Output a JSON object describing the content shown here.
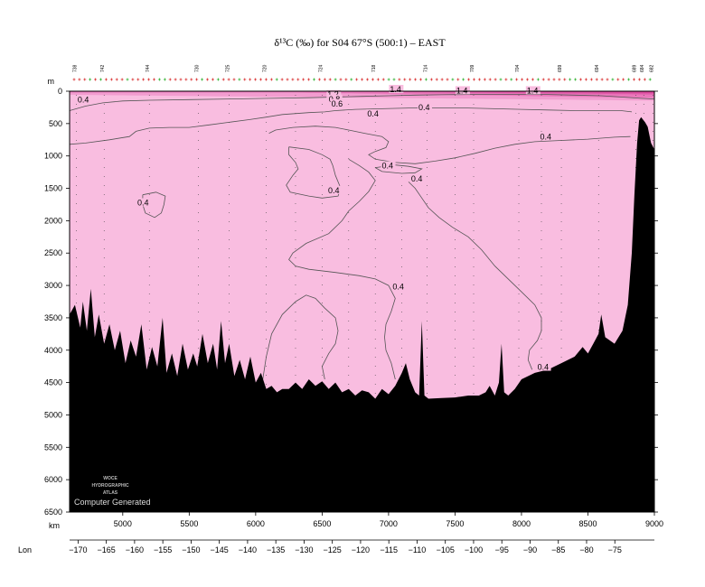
{
  "chart_data": {
    "type": "contour-section",
    "title": "δ¹³C (‰) for S04 67°S (500:1) – EAST",
    "depth_unit_label": "m",
    "distance_unit_label": "km",
    "lon_label": "Lon",
    "ylim": [
      0,
      6500
    ],
    "xlim": [
      4600,
      9000
    ],
    "depth_ticks": [
      0,
      500,
      1000,
      1500,
      2000,
      2500,
      3000,
      3500,
      4000,
      4500,
      5000,
      5500,
      6000,
      6500
    ],
    "km_ticks": [
      5000,
      5500,
      6000,
      6500,
      7000,
      7500,
      8000,
      8500,
      9000
    ],
    "lon_ticks": [
      -170,
      -165,
      -160,
      -155,
      -150,
      -145,
      -140,
      -135,
      -130,
      -125,
      -120,
      -115,
      -110,
      -105,
      -100,
      -95,
      -90,
      -85,
      -80,
      -75
    ],
    "lon_range": [
      -171.5,
      -68
    ],
    "station_labels": [
      {
        "text": "738",
        "km": 4650
      },
      {
        "text": "742",
        "km": 4860
      },
      {
        "text": "744",
        "km": 5200
      },
      {
        "text": "730",
        "km": 5570
      },
      {
        "text": "725",
        "km": 5800
      },
      {
        "text": "720",
        "km": 6080
      },
      {
        "text": "724",
        "km": 6500
      },
      {
        "text": "718",
        "km": 6900
      },
      {
        "text": "714",
        "km": 7290
      },
      {
        "text": "709",
        "km": 7640
      },
      {
        "text": "704",
        "km": 7980
      },
      {
        "text": "699",
        "km": 8300
      },
      {
        "text": "694",
        "km": 8580
      },
      {
        "text": "689",
        "km": 8860
      },
      {
        "text": "684",
        "km": 8920
      },
      {
        "text": "682",
        "km": 8990
      }
    ],
    "station_km": [
      4650,
      4860,
      5200,
      5570,
      5800,
      6080,
      6300,
      6500,
      6700,
      6900,
      7100,
      7290,
      7500,
      7640,
      7980,
      8150,
      8300,
      8580,
      8860,
      8920,
      8990
    ],
    "contour_labels": [
      {
        "text": "0.4",
        "km": 4660,
        "depth": 160
      },
      {
        "text": "1.4",
        "km": 7010,
        "depth": 0
      },
      {
        "text": "1.4",
        "km": 7510,
        "depth": 20
      },
      {
        "text": "1.4",
        "km": 8040,
        "depth": 20
      },
      {
        "text": "1.2",
        "km": 6540,
        "depth": 80
      },
      {
        "text": "0.8",
        "km": 6550,
        "depth": 150
      },
      {
        "text": "0.6",
        "km": 6570,
        "depth": 220
      },
      {
        "text": "0.4",
        "km": 6840,
        "depth": 380
      },
      {
        "text": "0.4",
        "km": 7225,
        "depth": 280
      },
      {
        "text": "0.4",
        "km": 8140,
        "depth": 730
      },
      {
        "text": "0.4",
        "km": 6950,
        "depth": 1180
      },
      {
        "text": "0.4",
        "km": 7170,
        "depth": 1380
      },
      {
        "text": "0.4",
        "km": 6545,
        "depth": 1560
      },
      {
        "text": "0.4",
        "km": 5110,
        "depth": 1750
      },
      {
        "text": "0.4",
        "km": 7030,
        "depth": 3050
      },
      {
        "text": "0.4",
        "km": 8120,
        "depth": 4290
      }
    ],
    "logo_lines": [
      "WOCE",
      "HYDROGRAPHIC",
      "ATLAS"
    ],
    "footer_note": "Computer Generated",
    "colors": {
      "background_fill": "#f9bde0",
      "band_1": "#f29ccf",
      "band_2": "#ea78bb",
      "band_3": "#e059a8",
      "band_4": "#d23c92",
      "seafloor": "#000000",
      "contour_line": "#555555",
      "station_tick_red": "#d00000",
      "station_tick_green": "#00a000"
    },
    "bathymetry": [
      [
        4600,
        3450
      ],
      [
        4640,
        3300
      ],
      [
        4680,
        3650
      ],
      [
        4700,
        3250
      ],
      [
        4730,
        3700
      ],
      [
        4760,
        3050
      ],
      [
        4790,
        3800
      ],
      [
        4820,
        3450
      ],
      [
        4860,
        3900
      ],
      [
        4900,
        3600
      ],
      [
        4940,
        4000
      ],
      [
        4980,
        3700
      ],
      [
        5020,
        4200
      ],
      [
        5060,
        3850
      ],
      [
        5100,
        4100
      ],
      [
        5140,
        3600
      ],
      [
        5180,
        4300
      ],
      [
        5220,
        3950
      ],
      [
        5260,
        4250
      ],
      [
        5300,
        3500
      ],
      [
        5330,
        4350
      ],
      [
        5370,
        4050
      ],
      [
        5410,
        4400
      ],
      [
        5450,
        3900
      ],
      [
        5490,
        4300
      ],
      [
        5530,
        4050
      ],
      [
        5560,
        4250
      ],
      [
        5600,
        3750
      ],
      [
        5640,
        4200
      ],
      [
        5680,
        3900
      ],
      [
        5710,
        4300
      ],
      [
        5740,
        3550
      ],
      [
        5770,
        4200
      ],
      [
        5800,
        3900
      ],
      [
        5840,
        4400
      ],
      [
        5880,
        4150
      ],
      [
        5920,
        4450
      ],
      [
        5960,
        4100
      ],
      [
        6000,
        4500
      ],
      [
        6040,
        4350
      ],
      [
        6080,
        4600
      ],
      [
        6120,
        4550
      ],
      [
        6160,
        4650
      ],
      [
        6200,
        4600
      ],
      [
        6250,
        4600
      ],
      [
        6300,
        4500
      ],
      [
        6350,
        4600
      ],
      [
        6400,
        4450
      ],
      [
        6450,
        4550
      ],
      [
        6500,
        4480
      ],
      [
        6550,
        4600
      ],
      [
        6600,
        4500
      ],
      [
        6650,
        4650
      ],
      [
        6700,
        4600
      ],
      [
        6750,
        4700
      ],
      [
        6800,
        4620
      ],
      [
        6850,
        4650
      ],
      [
        6900,
        4750
      ],
      [
        6950,
        4600
      ],
      [
        7000,
        4680
      ],
      [
        7050,
        4550
      ],
      [
        7100,
        4350
      ],
      [
        7130,
        4200
      ],
      [
        7160,
        4450
      ],
      [
        7200,
        4650
      ],
      [
        7230,
        4700
      ],
      [
        7250,
        3550
      ],
      [
        7270,
        4700
      ],
      [
        7300,
        4750
      ],
      [
        7400,
        4740
      ],
      [
        7500,
        4730
      ],
      [
        7600,
        4700
      ],
      [
        7680,
        4700
      ],
      [
        7730,
        4650
      ],
      [
        7760,
        4550
      ],
      [
        7800,
        4700
      ],
      [
        7830,
        4500
      ],
      [
        7850,
        3900
      ],
      [
        7870,
        4650
      ],
      [
        7900,
        4700
      ],
      [
        7950,
        4600
      ],
      [
        8000,
        4450
      ],
      [
        8100,
        4350
      ],
      [
        8200,
        4300
      ],
      [
        8300,
        4200
      ],
      [
        8400,
        4100
      ],
      [
        8460,
        3950
      ],
      [
        8500,
        4050
      ],
      [
        8540,
        3900
      ],
      [
        8580,
        3750
      ],
      [
        8600,
        3450
      ],
      [
        8630,
        3800
      ],
      [
        8700,
        3900
      ],
      [
        8760,
        3700
      ],
      [
        8800,
        3300
      ],
      [
        8830,
        2500
      ],
      [
        8850,
        1600
      ],
      [
        8870,
        800
      ],
      [
        8885,
        450
      ],
      [
        8900,
        400
      ],
      [
        8930,
        480
      ],
      [
        8950,
        550
      ],
      [
        8975,
        800
      ],
      [
        9000,
        900
      ]
    ],
    "contour_lines": [
      [
        [
          4600,
          820
        ],
        [
          4720,
          800
        ],
        [
          4900,
          750
        ],
        [
          5050,
          700
        ],
        [
          5100,
          620
        ],
        [
          5200,
          570
        ],
        [
          5350,
          560
        ],
        [
          5500,
          560
        ],
        [
          5650,
          520
        ],
        [
          5800,
          480
        ],
        [
          5950,
          440
        ],
        [
          6080,
          400
        ],
        [
          6200,
          360
        ],
        [
          6400,
          330
        ],
        [
          6520,
          320
        ],
        [
          6600,
          300
        ],
        [
          6750,
          280
        ],
        [
          6950,
          270
        ],
        [
          7150,
          260
        ],
        [
          7400,
          260
        ],
        [
          7600,
          260
        ],
        [
          7800,
          270
        ],
        [
          8000,
          280
        ],
        [
          8200,
          290
        ],
        [
          8400,
          300
        ],
        [
          8600,
          300
        ],
        [
          8750,
          300
        ],
        [
          8830,
          320
        ]
      ],
      [
        [
          4600,
          300
        ],
        [
          4720,
          230
        ],
        [
          4850,
          180
        ],
        [
          5000,
          150
        ],
        [
          5200,
          140
        ],
        [
          5500,
          130
        ],
        [
          5800,
          120
        ],
        [
          6100,
          110
        ],
        [
          6400,
          100
        ],
        [
          6600,
          90
        ],
        [
          6800,
          80
        ],
        [
          7000,
          70
        ],
        [
          7200,
          60
        ],
        [
          7400,
          55
        ],
        [
          7600,
          50
        ],
        [
          7800,
          50
        ],
        [
          8000,
          50
        ],
        [
          8200,
          50
        ],
        [
          8400,
          60
        ],
        [
          8600,
          70
        ],
        [
          8760,
          90
        ],
        [
          8900,
          110
        ],
        [
          9000,
          120
        ]
      ],
      [
        [
          6100,
          650
        ],
        [
          6150,
          600
        ],
        [
          6280,
          560
        ],
        [
          6450,
          540
        ],
        [
          6600,
          560
        ],
        [
          6700,
          600
        ],
        [
          6820,
          650
        ],
        [
          6950,
          700
        ],
        [
          7000,
          780
        ],
        [
          6980,
          870
        ],
        [
          6900,
          930
        ],
        [
          6850,
          980
        ],
        [
          6900,
          1050
        ],
        [
          7050,
          1100
        ],
        [
          7200,
          1120
        ],
        [
          7350,
          1080
        ],
        [
          7500,
          1030
        ],
        [
          7650,
          960
        ],
        [
          7800,
          880
        ],
        [
          7950,
          820
        ],
        [
          8100,
          780
        ],
        [
          8300,
          760
        ],
        [
          8500,
          740
        ],
        [
          8700,
          710
        ],
        [
          8820,
          700
        ]
      ],
      [
        [
          6250,
          860
        ],
        [
          6400,
          900
        ],
        [
          6500,
          980
        ],
        [
          6560,
          1050
        ],
        [
          6580,
          1150
        ],
        [
          6600,
          1300
        ],
        [
          6640,
          1500
        ],
        [
          6620,
          1620
        ],
        [
          6500,
          1650
        ],
        [
          6400,
          1620
        ],
        [
          6260,
          1560
        ],
        [
          6230,
          1450
        ],
        [
          6280,
          1300
        ],
        [
          6320,
          1200
        ],
        [
          6300,
          1100
        ],
        [
          6250,
          980
        ],
        [
          6250,
          860
        ]
      ],
      [
        [
          6900,
          1180
        ],
        [
          7050,
          1140
        ],
        [
          7150,
          1160
        ],
        [
          7250,
          1200
        ],
        [
          7200,
          1260
        ],
        [
          7100,
          1270
        ],
        [
          6950,
          1240
        ],
        [
          6900,
          1180
        ]
      ],
      [
        [
          5150,
          1600
        ],
        [
          5250,
          1560
        ],
        [
          5320,
          1620
        ],
        [
          5310,
          1750
        ],
        [
          5290,
          1880
        ],
        [
          5240,
          1950
        ],
        [
          5170,
          1880
        ],
        [
          5150,
          1750
        ],
        [
          5150,
          1600
        ]
      ],
      [
        [
          6700,
          1050
        ],
        [
          6780,
          1150
        ],
        [
          6850,
          1250
        ],
        [
          6900,
          1380
        ],
        [
          6850,
          1550
        ],
        [
          6780,
          1700
        ],
        [
          6700,
          1850
        ],
        [
          6650,
          2000
        ],
        [
          6550,
          2200
        ],
        [
          6380,
          2350
        ],
        [
          6280,
          2500
        ],
        [
          6250,
          2600
        ],
        [
          6300,
          2700
        ],
        [
          6400,
          2750
        ],
        [
          6600,
          2800
        ],
        [
          6780,
          2850
        ],
        [
          6900,
          2900
        ],
        [
          7000,
          3000
        ],
        [
          7050,
          3200
        ],
        [
          7020,
          3400
        ],
        [
          6980,
          3600
        ],
        [
          6970,
          3800
        ],
        [
          6980,
          4000
        ],
        [
          7020,
          4200
        ],
        [
          7050,
          4450
        ]
      ],
      [
        [
          7150,
          1400
        ],
        [
          7200,
          1500
        ],
        [
          7250,
          1650
        ],
        [
          7300,
          1800
        ],
        [
          7380,
          1950
        ],
        [
          7480,
          2100
        ],
        [
          7600,
          2250
        ],
        [
          7700,
          2450
        ],
        [
          7800,
          2700
        ],
        [
          7900,
          2900
        ],
        [
          8000,
          3100
        ],
        [
          8100,
          3300
        ],
        [
          8150,
          3500
        ],
        [
          8150,
          3700
        ],
        [
          8120,
          3850
        ],
        [
          8060,
          4000
        ],
        [
          8050,
          4150
        ],
        [
          8080,
          4300
        ]
      ],
      [
        [
          6050,
          4500
        ],
        [
          6080,
          4100
        ],
        [
          6120,
          3750
        ],
        [
          6200,
          3450
        ],
        [
          6300,
          3250
        ],
        [
          6380,
          3150
        ],
        [
          6450,
          3200
        ],
        [
          6520,
          3350
        ],
        [
          6600,
          3500
        ],
        [
          6620,
          3700
        ],
        [
          6600,
          3900
        ],
        [
          6550,
          4050
        ],
        [
          6500,
          4250
        ],
        [
          6520,
          4450
        ]
      ]
    ]
  }
}
